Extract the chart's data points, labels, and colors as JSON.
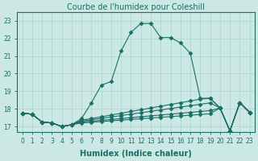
{
  "title": "Courbe de l'humidex pour Coleshill",
  "xlabel": "Humidex (Indice chaleur)",
  "bg_color": "#cce8e4",
  "line_color": "#1a6e66",
  "grid_color": "#aad4ce",
  "xlim": [
    -0.5,
    23.5
  ],
  "ylim": [
    16.7,
    23.5
  ],
  "yticks": [
    17,
    18,
    19,
    20,
    21,
    22,
    23
  ],
  "xtick_labels": [
    "0",
    "1",
    "2",
    "3",
    "4",
    "5",
    "6",
    "7",
    "8",
    "9",
    "10",
    "11",
    "12",
    "13",
    "14",
    "15",
    "16",
    "17",
    "18",
    "19",
    "20",
    "21",
    "22",
    "23"
  ],
  "lines": [
    {
      "x": [
        0,
        1,
        2,
        3,
        4,
        5,
        6,
        7,
        8,
        9,
        10,
        11,
        12,
        13,
        14,
        15,
        16,
        17,
        18,
        19,
        20,
        21,
        22,
        23
      ],
      "y": [
        17.75,
        17.7,
        17.25,
        17.2,
        17.0,
        17.1,
        17.45,
        18.35,
        19.35,
        19.55,
        21.3,
        22.35,
        22.85,
        22.85,
        22.05,
        22.05,
        21.75,
        21.15,
        18.6,
        18.6,
        18.05,
        16.75,
        18.35,
        17.8
      ]
    },
    {
      "x": [
        0,
        1,
        2,
        3,
        4,
        5,
        6,
        7,
        8,
        9,
        10,
        11,
        12,
        13,
        14,
        15,
        16,
        17,
        18,
        19,
        20,
        21,
        22,
        23
      ],
      "y": [
        17.75,
        17.7,
        17.25,
        17.2,
        17.0,
        17.1,
        17.35,
        17.45,
        17.55,
        17.65,
        17.75,
        17.85,
        17.95,
        18.05,
        18.15,
        18.25,
        18.35,
        18.45,
        18.55,
        18.6,
        18.05,
        16.75,
        18.35,
        17.8
      ]
    },
    {
      "x": [
        0,
        1,
        2,
        3,
        4,
        5,
        6,
        7,
        8,
        9,
        10,
        11,
        12,
        13,
        14,
        15,
        16,
        17,
        18,
        19,
        20,
        21,
        22,
        23
      ],
      "y": [
        17.75,
        17.7,
        17.25,
        17.2,
        17.0,
        17.1,
        17.3,
        17.38,
        17.46,
        17.54,
        17.62,
        17.7,
        17.78,
        17.86,
        17.94,
        18.02,
        18.1,
        18.18,
        18.26,
        18.34,
        18.05,
        16.75,
        18.35,
        17.8
      ]
    },
    {
      "x": [
        0,
        1,
        2,
        3,
        4,
        5,
        6,
        7,
        8,
        9,
        10,
        11,
        12,
        13,
        14,
        15,
        16,
        17,
        18,
        19,
        20,
        21,
        22,
        23
      ],
      "y": [
        17.75,
        17.7,
        17.25,
        17.2,
        17.0,
        17.1,
        17.25,
        17.3,
        17.35,
        17.4,
        17.45,
        17.5,
        17.55,
        17.6,
        17.65,
        17.7,
        17.75,
        17.8,
        17.85,
        17.9,
        18.05,
        16.75,
        18.35,
        17.8
      ]
    },
    {
      "x": [
        0,
        1,
        2,
        3,
        4,
        5,
        6,
        7,
        8,
        9,
        10,
        11,
        12,
        13,
        14,
        15,
        16,
        17,
        18,
        19,
        20,
        21,
        22,
        23
      ],
      "y": [
        17.75,
        17.7,
        17.25,
        17.2,
        17.0,
        17.1,
        17.2,
        17.24,
        17.28,
        17.32,
        17.36,
        17.4,
        17.44,
        17.48,
        17.52,
        17.56,
        17.6,
        17.64,
        17.68,
        17.72,
        18.05,
        16.75,
        18.35,
        17.8
      ]
    }
  ],
  "marker": "D",
  "marker_size": 2.5,
  "title_fontsize": 7,
  "xlabel_fontsize": 7,
  "tick_fontsize": 5.5
}
